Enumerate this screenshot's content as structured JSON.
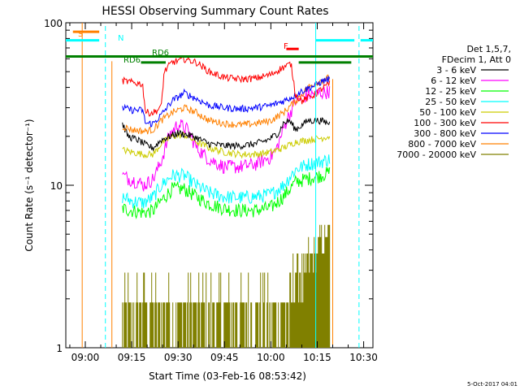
{
  "chart_data": {
    "type": "line",
    "title": "HESSI Observing Summary Count Rates",
    "xlabel": "Start Time (03-Feb-16 08:53:42)",
    "ylabel": "Count Rate (s⁻¹ detector⁻¹)",
    "y_scale": "log",
    "ylim": [
      1,
      100
    ],
    "xlim_minutes_after_0900": [
      -6.3,
      93
    ],
    "x_ticks": [
      {
        "label": "09:00",
        "minutes": 0
      },
      {
        "label": "09:15",
        "minutes": 15
      },
      {
        "label": "09:30",
        "minutes": 30
      },
      {
        "label": "09:45",
        "minutes": 45
      },
      {
        "label": "10:00",
        "minutes": 60
      },
      {
        "label": "10:15",
        "minutes": 75
      },
      {
        "label": "10:30",
        "minutes": 90
      }
    ],
    "y_ticks": [
      {
        "label": "1",
        "value": 1
      },
      {
        "label": "10",
        "value": 10
      },
      {
        "label": "100",
        "value": 100
      }
    ],
    "legend_position": "right",
    "legend_header": [
      "Det 1,5,7,",
      "FDecim 1, Att 0"
    ],
    "series": [
      {
        "name": "3 - 6 keV",
        "color": "#000000",
        "values": [
          [
            12,
            24
          ],
          [
            13.8,
            20
          ],
          [
            17,
            19
          ],
          [
            20,
            17.5
          ],
          [
            22,
            17
          ],
          [
            24.5,
            19
          ],
          [
            30,
            21
          ],
          [
            35,
            20
          ],
          [
            40,
            18
          ],
          [
            45,
            17.5
          ],
          [
            50,
            17.5
          ],
          [
            55,
            18
          ],
          [
            59,
            19
          ],
          [
            62.5,
            21
          ],
          [
            64,
            24
          ],
          [
            66,
            25
          ],
          [
            68,
            22
          ],
          [
            72,
            25
          ],
          [
            76,
            25
          ],
          [
            79,
            24
          ]
        ]
      },
      {
        "name": "6 - 12 keV",
        "color": "#ff00ff",
        "values": [
          [
            12,
            11.5
          ],
          [
            14,
            11
          ],
          [
            17,
            10.5
          ],
          [
            19,
            10
          ],
          [
            22,
            11
          ],
          [
            24.5,
            14
          ],
          [
            27,
            20
          ],
          [
            30,
            24
          ],
          [
            33,
            22
          ],
          [
            36,
            17
          ],
          [
            40,
            14.5
          ],
          [
            45,
            13
          ],
          [
            50,
            13
          ],
          [
            55,
            13.5
          ],
          [
            60,
            15
          ],
          [
            62,
            17
          ],
          [
            65,
            25
          ],
          [
            68,
            33
          ],
          [
            72,
            36
          ],
          [
            76,
            37
          ],
          [
            79,
            38
          ]
        ]
      },
      {
        "name": "12 - 25 keV",
        "color": "#00ff00",
        "values": [
          [
            12,
            7.2
          ],
          [
            15,
            7
          ],
          [
            19,
            6.8
          ],
          [
            22,
            7
          ],
          [
            24.5,
            8
          ],
          [
            28,
            9.5
          ],
          [
            32,
            9.5
          ],
          [
            36,
            8.5
          ],
          [
            40,
            7.7
          ],
          [
            45,
            7.2
          ],
          [
            50,
            7
          ],
          [
            55,
            7
          ],
          [
            60,
            7.3
          ],
          [
            64,
            8.5
          ],
          [
            68,
            10.5
          ],
          [
            72,
            11
          ],
          [
            76,
            11.5
          ],
          [
            79,
            12
          ]
        ]
      },
      {
        "name": "25 - 50 keV",
        "color": "#00ffff",
        "values": [
          [
            12,
            8.5
          ],
          [
            15,
            8
          ],
          [
            19,
            7.8
          ],
          [
            22,
            8.5
          ],
          [
            24.5,
            10
          ],
          [
            28,
            11.5
          ],
          [
            32,
            11.5
          ],
          [
            36,
            10
          ],
          [
            40,
            9
          ],
          [
            45,
            8.5
          ],
          [
            50,
            8.4
          ],
          [
            55,
            8.5
          ],
          [
            60,
            8.8
          ],
          [
            64,
            10
          ],
          [
            68,
            12.5
          ],
          [
            72,
            13.5
          ],
          [
            76,
            14
          ],
          [
            79,
            14.5
          ]
        ]
      },
      {
        "name": "50 - 100 keV",
        "color": "#cccc00",
        "values": [
          [
            12,
            16.5
          ],
          [
            15,
            16
          ],
          [
            19,
            15.5
          ],
          [
            22,
            15.5
          ],
          [
            24.5,
            18
          ],
          [
            28,
            20
          ],
          [
            32,
            20.5
          ],
          [
            36,
            18.5
          ],
          [
            40,
            17
          ],
          [
            45,
            16
          ],
          [
            50,
            15.5
          ],
          [
            55,
            15.5
          ],
          [
            60,
            16
          ],
          [
            64,
            17
          ],
          [
            68,
            18.5
          ],
          [
            72,
            19
          ],
          [
            76,
            19.5
          ],
          [
            79,
            20
          ]
        ]
      },
      {
        "name": "100 - 300 keV",
        "color": "#ff0000",
        "values": [
          [
            12,
            44
          ],
          [
            15,
            43
          ],
          [
            18.5,
            42
          ],
          [
            19.5,
            28
          ],
          [
            22,
            28
          ],
          [
            24.5,
            30
          ],
          [
            25.5,
            50
          ],
          [
            28,
            57
          ],
          [
            32,
            60
          ],
          [
            36,
            57
          ],
          [
            40,
            50
          ],
          [
            45,
            46
          ],
          [
            50,
            45
          ],
          [
            55,
            45.5
          ],
          [
            60,
            48
          ],
          [
            63,
            52
          ],
          [
            66.5,
            56
          ],
          [
            68,
            36
          ],
          [
            70,
            33
          ],
          [
            74,
            36
          ],
          [
            77,
            40
          ],
          [
            79,
            42
          ]
        ]
      },
      {
        "name": "300 - 800 keV",
        "color": "#0000ff",
        "values": [
          [
            12,
            30
          ],
          [
            15,
            29
          ],
          [
            18.5,
            29
          ],
          [
            19.5,
            24
          ],
          [
            22,
            24
          ],
          [
            24.5,
            27
          ],
          [
            28,
            33
          ],
          [
            32,
            37
          ],
          [
            36,
            34
          ],
          [
            40,
            31
          ],
          [
            45,
            30
          ],
          [
            50,
            29.5
          ],
          [
            55,
            30
          ],
          [
            60,
            31
          ],
          [
            64,
            33
          ],
          [
            67,
            35
          ],
          [
            70,
            38
          ],
          [
            74,
            41
          ],
          [
            77,
            44
          ],
          [
            79,
            45
          ]
        ]
      },
      {
        "name": "800 - 7000 keV",
        "color": "#ff8000",
        "values": [
          [
            12,
            23
          ],
          [
            15,
            22
          ],
          [
            19,
            21.5
          ],
          [
            22,
            22
          ],
          [
            24.5,
            25
          ],
          [
            28,
            28
          ],
          [
            32,
            30
          ],
          [
            36,
            28
          ],
          [
            40,
            25
          ],
          [
            45,
            24
          ],
          [
            50,
            23.5
          ],
          [
            55,
            24
          ],
          [
            60,
            25
          ],
          [
            64,
            28
          ],
          [
            68,
            33
          ],
          [
            72,
            40
          ],
          [
            76,
            44
          ],
          [
            79,
            46
          ]
        ]
      },
      {
        "name": "7000 - 20000 keV",
        "color": "#808000",
        "values": [
          [
            12,
            1.9
          ],
          [
            20,
            1.9
          ],
          [
            28,
            1.95
          ],
          [
            36,
            1.9
          ],
          [
            44,
            1.9
          ],
          [
            52,
            1.9
          ],
          [
            60,
            1.95
          ],
          [
            66,
            2.2
          ],
          [
            70,
            3
          ],
          [
            74,
            4
          ],
          [
            77,
            5
          ],
          [
            79,
            5.5
          ]
        ]
      }
    ],
    "annotations": [
      {
        "text": "S",
        "color": "#ff8000"
      },
      {
        "text": "N",
        "color": "#00ffff"
      },
      {
        "text": "RD6",
        "color": "#008000"
      },
      {
        "text": "RD6",
        "color": "#008000"
      },
      {
        "text": "F",
        "color": "#ff0000"
      }
    ],
    "flag_bars": [
      {
        "color": "#ff8000",
        "from": -4,
        "to": 4.5,
        "value": 88
      },
      {
        "color": "#00ffff",
        "from": -6.3,
        "to": 4.5,
        "value": 78
      },
      {
        "color": "#00ffff",
        "from": 74.5,
        "to": 87,
        "value": 78
      },
      {
        "color": "#00ffff",
        "from": 89,
        "to": 93,
        "value": 78
      },
      {
        "color": "#ff0000",
        "from": 65,
        "to": 69,
        "value": 69
      },
      {
        "color": "#008000",
        "from": -6.3,
        "to": 93,
        "value": 62
      },
      {
        "color": "#008000",
        "from": 18,
        "to": 26,
        "value": 57
      },
      {
        "color": "#008000",
        "from": 69,
        "to": 86,
        "value": 57
      },
      {
        "color": "#008000",
        "from": 88,
        "to": 93,
        "value": 62
      }
    ],
    "vertical_markers": [
      {
        "color": "#ff8000",
        "minutes": -1,
        "style": "solid"
      },
      {
        "color": "#00ffff",
        "minutes": 6.5,
        "style": "dashed"
      },
      {
        "color": "#ff8000",
        "minutes": 8.6,
        "style": "solid",
        "to_value": 58
      },
      {
        "color": "#00ffff",
        "minutes": 74.5,
        "style": "solid"
      },
      {
        "color": "#00ffff",
        "minutes": 88.5,
        "style": "dashed"
      },
      {
        "color": "#ff8000",
        "minutes": 80,
        "style": "solid",
        "to_value": 45
      }
    ],
    "grid": false,
    "timestamp": "5-Oct-2017 04:01"
  }
}
